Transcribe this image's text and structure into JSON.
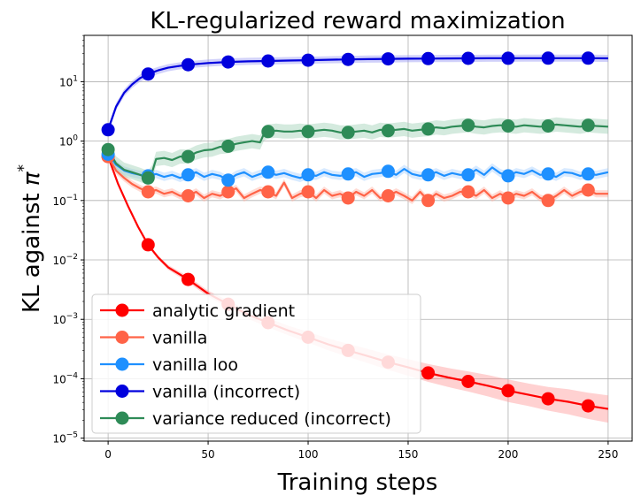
{
  "chart_data": {
    "type": "line",
    "title": "KL-regularized reward maximization",
    "xlabel": "Training steps",
    "ylabel_main": "KL against ",
    "ylabel_symbol": "π",
    "ylabel_sup": "*",
    "xlim": [
      -12,
      262
    ],
    "ylog10lim": [
      -5.05,
      1.78
    ],
    "xticks": [
      0,
      50,
      100,
      150,
      200,
      250
    ],
    "xtick_labels": [
      "0",
      "50",
      "100",
      "150",
      "200",
      "250"
    ],
    "yticks_exp": [
      -5,
      -4,
      -3,
      -2,
      -1,
      0,
      1
    ],
    "ytick_base": "10",
    "grid": true,
    "legend_position": "lower-left",
    "series": [
      {
        "name": "analytic gradient",
        "color": "#ff0000",
        "band_color": "#ff9999",
        "x": [
          0,
          5,
          10,
          15,
          20,
          25,
          30,
          40,
          50,
          60,
          70,
          80,
          90,
          100,
          110,
          120,
          130,
          140,
          150,
          160,
          170,
          180,
          190,
          200,
          210,
          220,
          230,
          240,
          250
        ],
        "y": [
          0.55,
          0.19,
          0.08,
          0.036,
          0.018,
          0.011,
          0.0075,
          0.0047,
          0.0027,
          0.0018,
          0.0012,
          0.00088,
          0.00065,
          0.0005,
          0.00038,
          0.0003,
          0.00024,
          0.00019,
          0.000155,
          0.000125,
          0.000105,
          9e-05,
          7.6e-05,
          6.3e-05,
          5.4e-05,
          4.6e-05,
          4.1e-05,
          3.5e-05,
          3.1e-05
        ],
        "band_width_log10": [
          0.02,
          0.03,
          0.03,
          0.03,
          0.03,
          0.03,
          0.04,
          0.05,
          0.05,
          0.06,
          0.07,
          0.08,
          0.08,
          0.09,
          0.1,
          0.11,
          0.12,
          0.13,
          0.14,
          0.15,
          0.16,
          0.17,
          0.18,
          0.19,
          0.19,
          0.2,
          0.21,
          0.22,
          0.23
        ],
        "marker_x": [
          0,
          20,
          40,
          60,
          80,
          100,
          120,
          140,
          160,
          180,
          200,
          220,
          240
        ],
        "marker_y": [
          0.55,
          0.018,
          0.0047,
          0.0018,
          0.00088,
          0.0005,
          0.0003,
          0.00019,
          0.000125,
          9e-05,
          6.3e-05,
          4.6e-05,
          3.5e-05
        ]
      },
      {
        "name": "vanilla",
        "color": "#ff6347",
        "band_color": "#ffb0a0",
        "x": [
          0,
          4,
          8,
          12,
          16,
          20,
          24,
          28,
          32,
          36,
          40,
          44,
          48,
          52,
          56,
          60,
          64,
          68,
          72,
          76,
          80,
          84,
          88,
          92,
          96,
          100,
          104,
          108,
          112,
          116,
          120,
          124,
          128,
          132,
          136,
          140,
          144,
          148,
          152,
          156,
          160,
          164,
          168,
          172,
          176,
          180,
          184,
          188,
          192,
          196,
          200,
          204,
          208,
          212,
          216,
          220,
          224,
          228,
          232,
          236,
          240,
          244,
          250
        ],
        "y": [
          0.55,
          0.32,
          0.24,
          0.19,
          0.16,
          0.14,
          0.15,
          0.13,
          0.14,
          0.12,
          0.12,
          0.14,
          0.11,
          0.13,
          0.12,
          0.14,
          0.16,
          0.11,
          0.13,
          0.15,
          0.14,
          0.12,
          0.2,
          0.11,
          0.13,
          0.14,
          0.11,
          0.15,
          0.12,
          0.13,
          0.11,
          0.14,
          0.12,
          0.15,
          0.11,
          0.12,
          0.14,
          0.12,
          0.1,
          0.14,
          0.1,
          0.13,
          0.11,
          0.12,
          0.14,
          0.14,
          0.12,
          0.15,
          0.11,
          0.13,
          0.11,
          0.13,
          0.12,
          0.14,
          0.11,
          0.1,
          0.12,
          0.15,
          0.12,
          0.14,
          0.15,
          0.13,
          0.13
        ],
        "band_width_log10": 0.06,
        "marker_x": [
          0,
          20,
          40,
          60,
          80,
          100,
          120,
          140,
          160,
          180,
          200,
          220,
          240
        ],
        "marker_y": [
          0.55,
          0.14,
          0.12,
          0.14,
          0.14,
          0.14,
          0.11,
          0.12,
          0.1,
          0.14,
          0.11,
          0.1,
          0.15
        ]
      },
      {
        "name": "vanilla loo",
        "color": "#1e90ff",
        "band_color": "#a8d0ff",
        "x": [
          0,
          4,
          8,
          12,
          16,
          20,
          24,
          28,
          32,
          36,
          40,
          44,
          48,
          52,
          56,
          60,
          64,
          68,
          72,
          76,
          80,
          84,
          88,
          92,
          96,
          100,
          104,
          108,
          112,
          116,
          120,
          124,
          128,
          132,
          136,
          140,
          144,
          148,
          152,
          156,
          160,
          164,
          168,
          172,
          176,
          180,
          184,
          188,
          192,
          196,
          200,
          204,
          208,
          212,
          216,
          220,
          224,
          228,
          232,
          236,
          240,
          244,
          250
        ],
        "y": [
          0.6,
          0.4,
          0.32,
          0.29,
          0.27,
          0.26,
          0.28,
          0.25,
          0.27,
          0.24,
          0.27,
          0.3,
          0.25,
          0.28,
          0.26,
          0.22,
          0.27,
          0.3,
          0.25,
          0.28,
          0.3,
          0.27,
          0.29,
          0.26,
          0.24,
          0.27,
          0.26,
          0.3,
          0.27,
          0.26,
          0.28,
          0.3,
          0.25,
          0.28,
          0.29,
          0.31,
          0.27,
          0.34,
          0.28,
          0.26,
          0.27,
          0.3,
          0.26,
          0.29,
          0.27,
          0.27,
          0.33,
          0.27,
          0.36,
          0.29,
          0.26,
          0.3,
          0.28,
          0.32,
          0.27,
          0.28,
          0.25,
          0.3,
          0.29,
          0.26,
          0.28,
          0.27,
          0.3
        ],
        "band_width_log10": 0.07,
        "marker_x": [
          0,
          20,
          40,
          60,
          80,
          100,
          120,
          140,
          160,
          180,
          200,
          220,
          240
        ],
        "marker_y": [
          0.6,
          0.26,
          0.27,
          0.22,
          0.3,
          0.27,
          0.28,
          0.31,
          0.27,
          0.27,
          0.26,
          0.28,
          0.28
        ]
      },
      {
        "name": "vanilla (incorrect)",
        "color": "#0000dd",
        "band_color": "#9a9af5",
        "x": [
          0,
          4,
          8,
          12,
          16,
          20,
          25,
          30,
          35,
          40,
          50,
          60,
          70,
          80,
          90,
          100,
          110,
          120,
          130,
          140,
          150,
          160,
          170,
          180,
          190,
          200,
          210,
          220,
          230,
          240,
          250
        ],
        "y": [
          1.55,
          3.8,
          6.5,
          9.0,
          11.5,
          13.5,
          15.5,
          17.2,
          18.3,
          19.3,
          20.6,
          21.5,
          22.0,
          22.3,
          22.7,
          23.0,
          23.4,
          23.7,
          24.0,
          24.2,
          24.4,
          24.5,
          24.6,
          24.7,
          24.8,
          24.8,
          24.9,
          24.9,
          24.9,
          24.9,
          24.7
        ],
        "band_width_log10": 0.06,
        "marker_x": [
          0,
          20,
          40,
          60,
          80,
          100,
          120,
          140,
          160,
          180,
          200,
          220,
          240
        ],
        "marker_y": [
          1.55,
          13.5,
          19.3,
          21.5,
          22.3,
          23.0,
          23.7,
          24.2,
          24.5,
          24.7,
          24.8,
          24.9,
          24.9
        ]
      },
      {
        "name": "variance reduced (incorrect)",
        "color": "#2e8b57",
        "band_color": "#9fd1b5",
        "x": [
          0,
          4,
          8,
          12,
          16,
          20,
          22,
          24,
          28,
          32,
          36,
          40,
          44,
          48,
          52,
          56,
          60,
          64,
          68,
          72,
          76,
          78,
          80,
          84,
          88,
          92,
          96,
          100,
          104,
          108,
          112,
          116,
          120,
          124,
          128,
          132,
          136,
          140,
          144,
          148,
          152,
          156,
          160,
          164,
          168,
          172,
          176,
          180,
          184,
          188,
          192,
          196,
          200,
          204,
          208,
          212,
          216,
          220,
          224,
          228,
          232,
          236,
          240,
          244,
          250
        ],
        "y": [
          0.72,
          0.42,
          0.33,
          0.3,
          0.27,
          0.24,
          0.3,
          0.5,
          0.52,
          0.48,
          0.55,
          0.55,
          0.64,
          0.7,
          0.72,
          0.8,
          0.82,
          0.9,
          0.95,
          1.0,
          0.95,
          1.35,
          1.45,
          1.5,
          1.45,
          1.45,
          1.5,
          1.45,
          1.5,
          1.55,
          1.5,
          1.4,
          1.4,
          1.45,
          1.5,
          1.4,
          1.55,
          1.5,
          1.55,
          1.6,
          1.5,
          1.55,
          1.6,
          1.7,
          1.65,
          1.75,
          1.8,
          1.85,
          1.75,
          1.7,
          1.8,
          1.85,
          1.8,
          1.75,
          1.85,
          1.8,
          1.75,
          1.8,
          1.9,
          1.85,
          1.8,
          1.75,
          1.85,
          1.8,
          1.75
        ],
        "band_width_log10": 0.12,
        "marker_x": [
          0,
          20,
          40,
          60,
          80,
          100,
          120,
          140,
          160,
          180,
          200,
          220,
          240
        ],
        "marker_y": [
          0.72,
          0.24,
          0.55,
          0.82,
          1.45,
          1.45,
          1.4,
          1.5,
          1.6,
          1.85,
          1.8,
          1.8,
          1.85
        ]
      }
    ]
  }
}
